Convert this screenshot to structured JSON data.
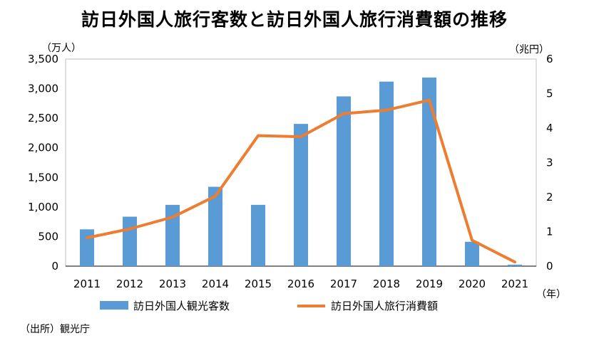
{
  "title": "訪日外国人旅行客数と訪日外国人旅行消費額の推移",
  "source": "（出所）観光庁",
  "colors": {
    "bar": "#5b9bd5",
    "line": "#ed7d31",
    "axis": "#000000",
    "gridbox": "#bfbfbf"
  },
  "chart_data": {
    "type": "bar",
    "categories": [
      "2011",
      "2012",
      "2013",
      "2014",
      "2015",
      "2016",
      "2017",
      "2018",
      "2019",
      "2020",
      "2021"
    ],
    "xunit": "（年）",
    "series": [
      {
        "name": "訪日外国人観光客数",
        "type": "bar",
        "axis": "left",
        "values": [
          622,
          836,
          1036,
          1341,
          1036,
          2404,
          2869,
          3119,
          3188,
          412,
          25
        ]
      },
      {
        "name": "訪日外国人旅行消費額",
        "type": "line",
        "axis": "right",
        "values": [
          0.82,
          1.08,
          1.42,
          2.03,
          3.78,
          3.75,
          4.42,
          4.52,
          4.81,
          0.75,
          0.12
        ]
      }
    ],
    "y_left": {
      "unit": "（万人）",
      "ylim": [
        0,
        3500
      ],
      "ticks": [
        "0",
        "500",
        "1,000",
        "1,500",
        "2,000",
        "2,500",
        "3,000",
        "3,500"
      ]
    },
    "y_right": {
      "unit": "（兆円）",
      "ylim": [
        0,
        6
      ],
      "ticks": [
        "0",
        "1",
        "2",
        "3",
        "4",
        "5",
        "6"
      ]
    },
    "legend": "bottom",
    "grid": false
  }
}
